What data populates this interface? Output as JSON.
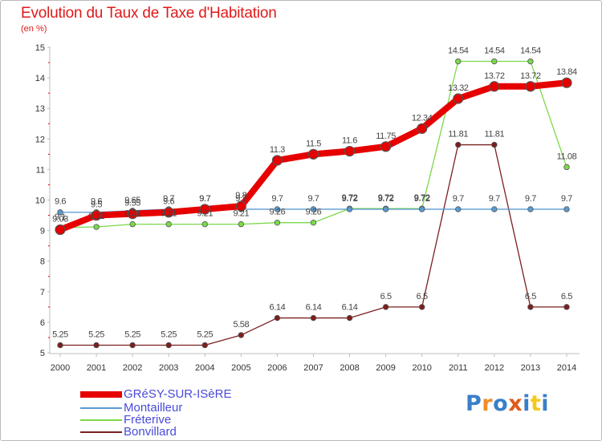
{
  "title": "Evolution du Taux de Taxe d'Habitation",
  "unit": "(en %)",
  "logo_text": "Proxiti",
  "chart_data": {
    "type": "line",
    "title": "Evolution du Taux de Taxe d'Habitation",
    "ylabel": "(en %)",
    "xlabel": "",
    "x": [
      "2000",
      "2001",
      "2002",
      "2003",
      "2004",
      "2005",
      "2006",
      "2007",
      "2008",
      "2009",
      "2010",
      "2011",
      "2012",
      "2013",
      "2014"
    ],
    "ylim": [
      5,
      15
    ],
    "yticks": [
      5,
      6,
      7,
      8,
      9,
      10,
      11,
      12,
      13,
      14,
      15
    ],
    "grid": false,
    "legend_position": "bottom-left",
    "series": [
      {
        "name": "GRéSY-SUR-ISèRE",
        "color": "#e60000",
        "values": [
          9.03,
          9.5,
          9.55,
          9.6,
          9.7,
          9.8,
          11.3,
          11.5,
          11.6,
          11.75,
          12.34,
          13.32,
          13.72,
          13.72,
          13.84
        ],
        "labels": [
          "9.03",
          "9.5",
          "9.55",
          "9.6",
          "9.7",
          "9.8",
          "11.3",
          "11.5",
          "11.6",
          "11.75",
          "12.34",
          "13.32",
          "13.72",
          "13.72",
          "13.84"
        ]
      },
      {
        "name": "Montailleur",
        "color": "#5a9ad2",
        "values": [
          9.6,
          9.6,
          9.65,
          9.7,
          9.7,
          9.7,
          9.7,
          9.7,
          9.7,
          9.7,
          9.7,
          9.7,
          9.7,
          9.7,
          9.7
        ],
        "labels": [
          "9.6",
          "9.6",
          "9.65",
          "9.7",
          "9.7",
          "9.7",
          "9.7",
          "9.7",
          "9.72",
          "9.72",
          "9.72",
          "9.7",
          "9.7",
          "9.7",
          "9.7"
        ]
      },
      {
        "name": "Fréterive",
        "color": "#7ad94a",
        "values": [
          9.1,
          9.12,
          9.21,
          9.21,
          9.21,
          9.21,
          9.26,
          9.26,
          9.72,
          9.72,
          9.72,
          14.54,
          14.54,
          14.54,
          11.08
        ],
        "labels": [
          "9.1",
          "9.12",
          "9.21",
          "9.21",
          "9.21",
          "9.21",
          "9.26",
          "9.26",
          "9.72",
          "9.72",
          "9.72",
          "14.54",
          "14.54",
          "14.54",
          "11.08"
        ]
      },
      {
        "name": "Bonvillard",
        "color": "#7a1f1f",
        "values": [
          5.25,
          5.25,
          5.25,
          5.25,
          5.25,
          5.58,
          6.14,
          6.14,
          6.14,
          6.5,
          6.5,
          11.81,
          11.81,
          6.5,
          6.5
        ],
        "labels": [
          "5.25",
          "5.25",
          "5.25",
          "5.25",
          "5.25",
          "5.58",
          "6.14",
          "6.14",
          "6.14",
          "6.5",
          "6.5",
          "11.81",
          "11.81",
          "6.5",
          "6.5"
        ]
      }
    ]
  }
}
